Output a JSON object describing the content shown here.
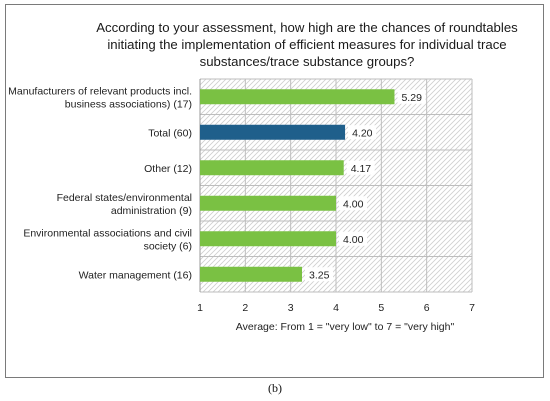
{
  "caption": "(b)",
  "colors": {
    "bar": "#7ac143",
    "highlight": "#1f5f8b",
    "grid": "#bdbdbd",
    "hatch": "#cfcfcf"
  },
  "chart_data": {
    "type": "bar",
    "orientation": "horizontal",
    "title": "According to your assessment, how high are the chances of roundtables initiating the implementation of efficient measures for individual trace substances/trace substance groups?",
    "xlabel": "Average: From 1 = \"very low\" to 7 = \"very high\"",
    "ylabel": "",
    "xlim": [
      1,
      7
    ],
    "xticks": [
      "1",
      "2",
      "3",
      "4",
      "5",
      "6",
      "7"
    ],
    "grid": true,
    "highlight_index": 1,
    "categories": [
      [
        "Manufacturers of relevant products incl.",
        "business associations) (17)"
      ],
      [
        "Total (60)"
      ],
      [
        "Other (12)"
      ],
      [
        "Federal states/environmental",
        "administration (9)"
      ],
      [
        "Environmental associations and civil",
        "society (6)"
      ],
      [
        "Water management  (16)"
      ]
    ],
    "values": [
      5.29,
      4.2,
      4.17,
      4.0,
      4.0,
      3.25
    ],
    "value_labels": [
      "5.29",
      "4.20",
      "4.17",
      "4.00",
      "4.00",
      "3.25"
    ]
  }
}
